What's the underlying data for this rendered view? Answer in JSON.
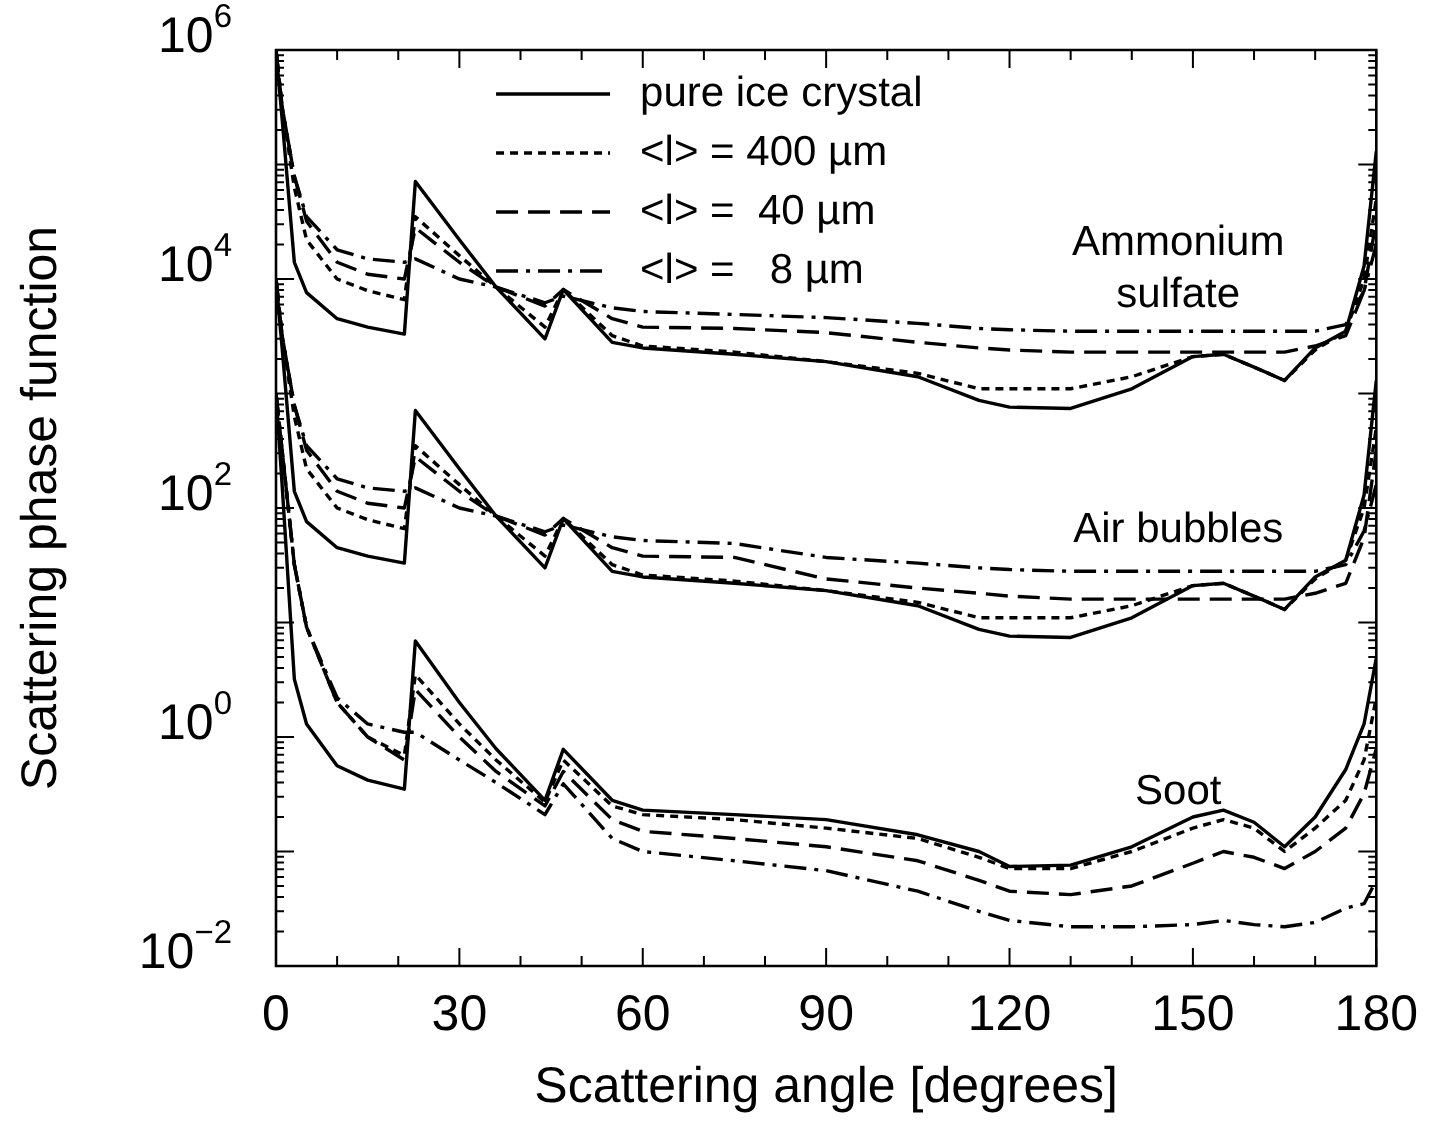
{
  "chart_data": {
    "type": "line",
    "xlabel": "Scattering angle [degrees]",
    "ylabel": "Scattering phase function",
    "log": "y",
    "legend": "top",
    "marker": "none",
    "xlim": [
      0,
      180
    ],
    "xticks": [
      0,
      30,
      60,
      90,
      120,
      150,
      180
    ],
    "ylim": [
      0.01,
      1000000
    ],
    "yticks": [
      {
        "value": 0.01,
        "label": "10$^{−2}$"
      },
      {
        "value": 1,
        "label": "10$^{0}$"
      },
      {
        "value": 100,
        "label": "10$^{2}$"
      },
      {
        "value": 10000,
        "label": "10$^{4}$"
      },
      {
        "value": 1000000,
        "label": "10$^{6}$"
      }
    ],
    "x": [
      0,
      1,
      3,
      5,
      10,
      15,
      21,
      22.8,
      30,
      36,
      44,
      47,
      55,
      60,
      75,
      90,
      105,
      115,
      120,
      130,
      140,
      150,
      155,
      160,
      165,
      170,
      175,
      178,
      180
    ],
    "series": [
      {
        "name": "pure ice crystal",
        "color": "#000000",
        "line_style": "solid",
        "values": [
          1000000,
          250000,
          14000,
          7600,
          4500,
          3800,
          3300,
          71000,
          22000,
          8500,
          3000,
          8100,
          2800,
          2500,
          2200,
          1900,
          1400,
          870,
          760,
          740,
          1100,
          2100,
          2200,
          1700,
          1300,
          2500,
          3500,
          13000,
          130000
        ]
      },
      {
        "name": "<l> = 400 µm",
        "color": "#000000",
        "line_style": "dotted",
        "values": [
          1000000,
          320000,
          63000,
          22000,
          10000,
          7900,
          6600,
          35000,
          16000,
          8500,
          3800,
          8100,
          3200,
          2600,
          2300,
          1900,
          1500,
          1100,
          1100,
          1100,
          1400,
          2100,
          2200,
          1700,
          1300,
          2400,
          3500,
          10000,
          50000
        ]
      },
      {
        "name": "<l> =  40 µm",
        "color": "#000000",
        "line_style": "dashed",
        "values": [
          1000000,
          320000,
          79000,
          32000,
          14000,
          11000,
          10000,
          28000,
          14000,
          8500,
          5800,
          8100,
          4500,
          3800,
          3700,
          3400,
          2800,
          2500,
          2400,
          2300,
          2300,
          2300,
          2300,
          2300,
          2300,
          2600,
          3200,
          7900,
          32000
        ]
      },
      {
        "name": "<l> =   8 µm",
        "color": "#000000",
        "line_style": "dashdot",
        "values": [
          1000000,
          320000,
          79000,
          35000,
          18000,
          15000,
          14000,
          15000,
          10000,
          8500,
          6200,
          7100,
          5600,
          5200,
          4900,
          4600,
          4100,
          3700,
          3600,
          3500,
          3500,
          3500,
          3500,
          3500,
          3500,
          3500,
          4000,
          7900,
          20000
        ]
      },
      {
        "color": "#000000",
        "line_style": "solid",
        "values": [
          10000,
          2500,
          140,
          76,
          45,
          38,
          33,
          710,
          220,
          85,
          30,
          81,
          28,
          25,
          22,
          19,
          14,
          8.7,
          7.6,
          7.4,
          11,
          21,
          22,
          17,
          13,
          25,
          35,
          130,
          1300
        ]
      },
      {
        "color": "#000000",
        "line_style": "dotted",
        "values": [
          10000,
          3200,
          630,
          220,
          100,
          79,
          66,
          350,
          160,
          85,
          38,
          81,
          32,
          26,
          23,
          19,
          15,
          11,
          11,
          11,
          14,
          21,
          22,
          17,
          13,
          24,
          35,
          100,
          500
        ]
      },
      {
        "color": "#000000",
        "line_style": "dashed",
        "values": [
          10000,
          3200,
          790,
          320,
          140,
          110,
          100,
          280,
          140,
          85,
          58,
          81,
          45,
          38,
          37,
          24,
          20,
          18,
          17,
          16,
          16,
          16,
          16,
          16,
          16,
          18,
          22,
          55,
          320
        ]
      },
      {
        "color": "#000000",
        "line_style": "dashdot",
        "values": [
          10000,
          3200,
          790,
          350,
          180,
          150,
          140,
          150,
          100,
          85,
          62,
          71,
          56,
          52,
          49,
          37,
          33,
          30,
          29,
          28,
          28,
          28,
          28,
          28,
          28,
          28,
          32,
          63,
          160
        ]
      },
      {
        "color": "#000000",
        "line_style": "solid",
        "values": [
          1000,
          160,
          3.2,
          1.3,
          0.56,
          0.42,
          0.35,
          6.9,
          2.0,
          0.79,
          0.28,
          0.78,
          0.28,
          0.23,
          0.21,
          0.19,
          0.14,
          0.1,
          0.074,
          0.076,
          0.11,
          0.2,
          0.23,
          0.18,
          0.11,
          0.2,
          0.52,
          1.3,
          4.9
        ]
      },
      {
        "color": "#000000",
        "line_style": "dotted",
        "values": [
          1000,
          320,
          32,
          9.1,
          2.0,
          1.0,
          0.69,
          3.5,
          1.3,
          0.63,
          0.27,
          0.63,
          0.25,
          0.21,
          0.19,
          0.16,
          0.13,
          0.089,
          0.071,
          0.071,
          0.1,
          0.16,
          0.19,
          0.16,
          0.1,
          0.16,
          0.28,
          0.63,
          2.2
        ]
      },
      {
        "color": "#000000",
        "line_style": "dashed",
        "values": [
          1000,
          320,
          32,
          9.1,
          2.0,
          1.0,
          0.63,
          2.6,
          1.0,
          0.5,
          0.25,
          0.5,
          0.19,
          0.15,
          0.13,
          0.11,
          0.083,
          0.056,
          0.045,
          0.042,
          0.05,
          0.079,
          0.1,
          0.089,
          0.071,
          0.1,
          0.16,
          0.32,
          0.79
        ]
      },
      {
        "color": "#000000",
        "line_style": "dashdot",
        "values": [
          1000,
          320,
          32,
          9.1,
          2.2,
          1.3,
          1.1,
          1.1,
          0.63,
          0.4,
          0.21,
          0.39,
          0.13,
          0.1,
          0.083,
          0.068,
          0.045,
          0.03,
          0.025,
          0.022,
          0.022,
          0.023,
          0.025,
          0.023,
          0.022,
          0.024,
          0.032,
          0.035,
          0.056
        ]
      }
    ],
    "annotations": [
      "Ammonium\nsulfate",
      "Air bubbles",
      "Soot"
    ]
  }
}
